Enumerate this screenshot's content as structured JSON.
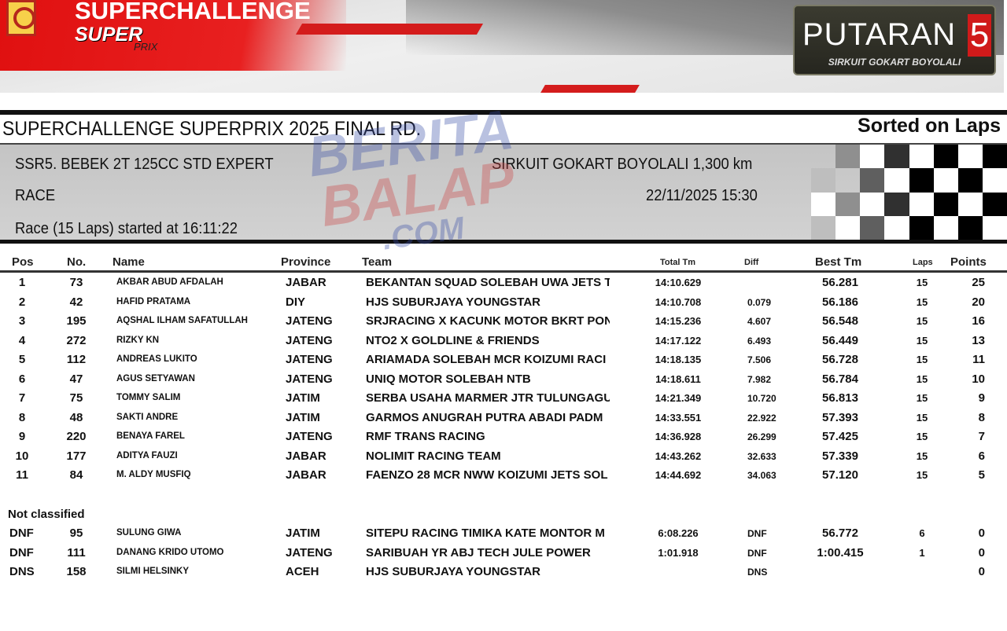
{
  "banner": {
    "logo_text": "SUPERCHALLENGE",
    "logo_sub": "SUPER",
    "logo_sub2": "PRIX",
    "round_label": "PUTARAN",
    "round_number": "5",
    "venue": "SIRKUIT GOKART BOYOLALI"
  },
  "watermark": {
    "line1": "BERITA",
    "line2": "BALAP",
    "line3": ".COM"
  },
  "event_title": "SUPERCHALLENGE SUPERPRIX 2025 FINAL RD.",
  "sorted_label": "Sorted on Laps",
  "info": {
    "class": "SSR5. BEBEK 2T 125CC STD EXPERT",
    "session": "RACE",
    "start": "Race (15 Laps) started at 16:11:22",
    "circuit": "SIRKUIT GOKART BOYOLALI 1,300 km",
    "datetime": "22/11/2025 15:30"
  },
  "columns": {
    "pos": "Pos",
    "no": "No.",
    "name": "Name",
    "province": "Province",
    "team": "Team",
    "total": "Total Tm",
    "diff": "Diff",
    "best": "Best Tm",
    "laps": "Laps",
    "points": "Points"
  },
  "results": [
    {
      "pos": "1",
      "no": "73",
      "name": "AKBAR ABUD AFDALAH",
      "province": "JABAR",
      "team": "BEKANTAN SQUAD SOLEBAH UWA JETS T",
      "total": "14:10.629",
      "diff": "",
      "best": "56.281",
      "laps": "15",
      "points": "25"
    },
    {
      "pos": "2",
      "no": "42",
      "name": "HAFID PRATAMA",
      "province": "DIY",
      "team": "HJS SUBURJAYA YOUNGSTAR",
      "total": "14:10.708",
      "diff": "0.079",
      "best": "56.186",
      "laps": "15",
      "points": "20"
    },
    {
      "pos": "3",
      "no": "195",
      "name": "AQSHAL ILHAM SAFATULLAH",
      "province": "JATENG",
      "team": "SRJRACING X KACUNK MOTOR BKRT PON",
      "total": "14:15.236",
      "diff": "4.607",
      "best": "56.548",
      "laps": "15",
      "points": "16"
    },
    {
      "pos": "4",
      "no": "272",
      "name": "RIZKY KN",
      "province": "JATENG",
      "team": "NTO2 X GOLDLINE & FRIENDS",
      "total": "14:17.122",
      "diff": "6.493",
      "best": "56.449",
      "laps": "15",
      "points": "13"
    },
    {
      "pos": "5",
      "no": "112",
      "name": "ANDREAS LUKITO",
      "province": "JATENG",
      "team": "ARIAMADA SOLEBAH MCR KOIZUMI RACI",
      "total": "14:18.135",
      "diff": "7.506",
      "best": "56.728",
      "laps": "15",
      "points": "11"
    },
    {
      "pos": "6",
      "no": "47",
      "name": "AGUS SETYAWAN",
      "province": "JATENG",
      "team": "UNIQ MOTOR SOLEBAH NTB",
      "total": "14:18.611",
      "diff": "7.982",
      "best": "56.784",
      "laps": "15",
      "points": "10"
    },
    {
      "pos": "7",
      "no": "75",
      "name": "TOMMY SALIM",
      "province": "JATIM",
      "team": "SERBA USAHA MARMER JTR TULUNGAGU",
      "total": "14:21.349",
      "diff": "10.720",
      "best": "56.813",
      "laps": "15",
      "points": "9"
    },
    {
      "pos": "8",
      "no": "48",
      "name": "SAKTI ANDRE",
      "province": "JATIM",
      "team": "GARMOS ANUGRAH PUTRA ABADI PADM",
      "total": "14:33.551",
      "diff": "22.922",
      "best": "57.393",
      "laps": "15",
      "points": "8"
    },
    {
      "pos": "9",
      "no": "220",
      "name": "BENAYA FAREL",
      "province": "JATENG",
      "team": "RMF TRANS RACING",
      "total": "14:36.928",
      "diff": "26.299",
      "best": "57.425",
      "laps": "15",
      "points": "7"
    },
    {
      "pos": "10",
      "no": "177",
      "name": "ADITYA FAUZI",
      "province": "JABAR",
      "team": "NOLIMIT RACING TEAM",
      "total": "14:43.262",
      "diff": "32.633",
      "best": "57.339",
      "laps": "15",
      "points": "6"
    },
    {
      "pos": "11",
      "no": "84",
      "name": "M. ALDY MUSFIQ",
      "province": "JABAR",
      "team": "FAENZO 28 MCR NWW KOIZUMI JETS SOL",
      "total": "14:44.692",
      "diff": "34.063",
      "best": "57.120",
      "laps": "15",
      "points": "5"
    }
  ],
  "not_classified_label": "Not classified",
  "not_classified": [
    {
      "pos": "DNF",
      "no": "95",
      "name": "SULUNG GIWA",
      "province": "JATIM",
      "team": "SITEPU RACING TIMIKA KATE MONTOR M",
      "total": "6:08.226",
      "diff": "DNF",
      "best": "56.772",
      "laps": "6",
      "points": "0"
    },
    {
      "pos": "DNF",
      "no": "111",
      "name": "DANANG KRIDO UTOMO",
      "province": "JATENG",
      "team": "SARIBUAH YR ABJ TECH JULE POWER",
      "total": "1:01.918",
      "diff": "DNF",
      "best": "1:00.415",
      "laps": "1",
      "points": "0"
    },
    {
      "pos": "DNS",
      "no": "158",
      "name": "SILMI HELSINKY",
      "province": "ACEH",
      "team": "HJS SUBURJAYA YOUNGSTAR",
      "total": "",
      "diff": "DNS",
      "best": "",
      "laps": "",
      "points": "0"
    }
  ]
}
